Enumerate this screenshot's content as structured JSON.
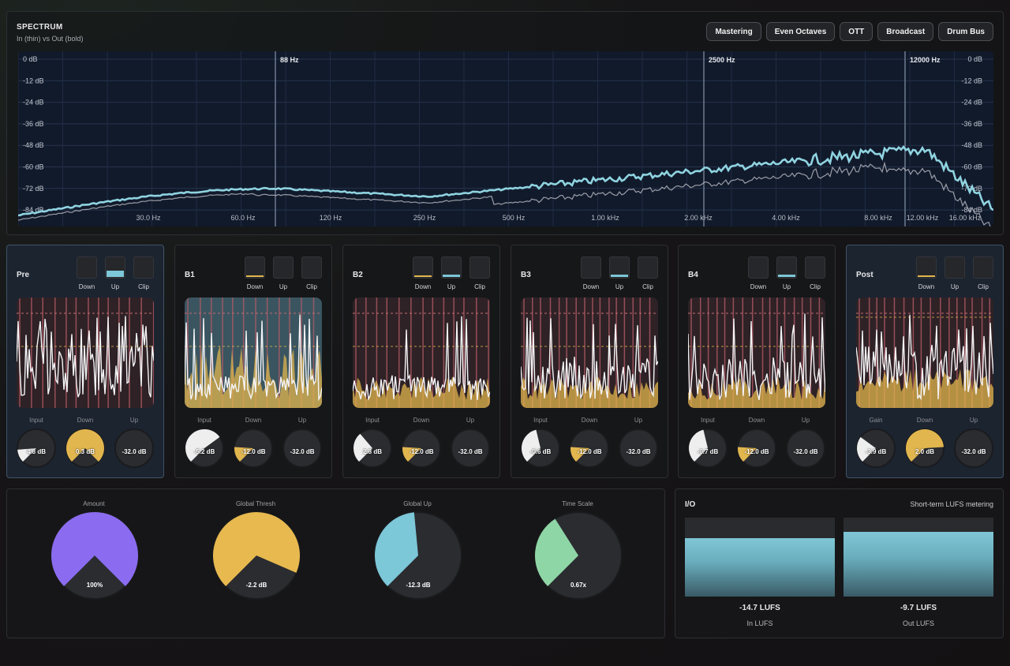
{
  "spectrum": {
    "title": "SPECTRUM",
    "subtitle": "In (thin) vs Out (bold)",
    "presets": [
      "Mastering",
      "Even Octaves",
      "OTT",
      "Broadcast",
      "Drum Bus"
    ],
    "db_left": [
      "0 dB",
      "-12 dB",
      "-24 dB",
      "-36 dB",
      "-48 dB",
      "-60 dB",
      "-72 dB",
      "-84 dB"
    ],
    "db_right": [
      "0 dB",
      "-12 dB",
      "-24 dB",
      "-36 dB",
      "-48 dB",
      "-60 dB",
      "-72 dB",
      "-84 dB"
    ],
    "freq_ticks": [
      "30.0 Hz",
      "60.0 Hz",
      "120 Hz",
      "250 Hz",
      "500 Hz",
      "1.00 kHz",
      "2.00 kHz",
      "4.00 kHz",
      "8.00 kHz",
      "12.00 kHz",
      "16.00 kHz"
    ],
    "split_labels": [
      "88 Hz",
      "2500 Hz",
      "12000 Hz"
    ],
    "colors": {
      "out": "#8fd3e0",
      "in": "#c9c9d1",
      "grid": "#2a3a55",
      "bg": "#111827"
    }
  },
  "bands": [
    {
      "name": "Pre",
      "toggles": {
        "down": "Down",
        "up": "Up",
        "clip": "Clip"
      },
      "active": "up",
      "knob_labels": [
        "Input",
        "Down",
        "Up"
      ],
      "values": [
        "4.8 dB",
        "0.3 dB",
        "-32.0 dB"
      ],
      "fills": [
        0.15,
        1.0,
        0.0
      ]
    },
    {
      "name": "B1",
      "toggles": {
        "down": "Down",
        "up": "Up",
        "clip": "Clip"
      },
      "active": "down",
      "knob_labels": [
        "Input",
        "Down",
        "Up"
      ],
      "values": [
        "-5.2 dB",
        "-12.0 dB",
        "-32.0 dB"
      ],
      "fills": [
        0.7,
        0.18,
        0.0
      ]
    },
    {
      "name": "B2",
      "toggles": {
        "down": "Down",
        "up": "Up",
        "clip": "Clip"
      },
      "active": "down-up",
      "knob_labels": [
        "Input",
        "Down",
        "Up"
      ],
      "values": [
        "2.8 dB",
        "-12.0 dB",
        "-32.0 dB"
      ],
      "fills": [
        0.35,
        0.18,
        0.0
      ]
    },
    {
      "name": "B3",
      "toggles": {
        "down": "Down",
        "up": "Up",
        "clip": "Clip"
      },
      "active": "up",
      "knob_labels": [
        "Input",
        "Down",
        "Up"
      ],
      "values": [
        "-0.6 dB",
        "-12.0 dB",
        "-32.0 dB"
      ],
      "fills": [
        0.45,
        0.18,
        0.0
      ]
    },
    {
      "name": "B4",
      "toggles": {
        "down": "Down",
        "up": "Up",
        "clip": "Clip"
      },
      "active": "up",
      "knob_labels": [
        "Input",
        "Down",
        "Up"
      ],
      "values": [
        "-0.7 dB",
        "-12.0 dB",
        "-32.0 dB"
      ],
      "fills": [
        0.45,
        0.18,
        0.0
      ]
    },
    {
      "name": "Post",
      "toggles": {
        "down": "Down",
        "up": "Up",
        "clip": "Clip"
      },
      "active": "down",
      "knob_labels": [
        "Gain",
        "Down",
        "Up"
      ],
      "values": [
        "-3.9 dB",
        "2.0 dB",
        "-32.0 dB"
      ],
      "fills": [
        0.3,
        0.82,
        0.0
      ]
    }
  ],
  "globals": [
    {
      "label": "Amount",
      "value": "100%",
      "fill": 1.0,
      "color": "#8b6cf0"
    },
    {
      "label": "Global Thresh",
      "value": "-2.2 dB",
      "fill": 0.92,
      "color": "#e8b94f"
    },
    {
      "label": "Global Up",
      "value": "-12.3 dB",
      "fill": 0.48,
      "color": "#7cc7d8"
    },
    {
      "label": "Time Scale",
      "value": "0.67x",
      "fill": 0.38,
      "color": "#8fd6a6"
    }
  ],
  "io": {
    "title": "I/O",
    "subtitle": "Short-term LUFS metering",
    "meters": [
      {
        "name": "In LUFS",
        "value": "-14.7 LUFS",
        "level": 0.74
      },
      {
        "name": "Out LUFS",
        "value": "-9.7 LUFS",
        "level": 0.82
      }
    ]
  },
  "colors": {
    "white": "#f0f0f2",
    "gold": "#e2b64e",
    "cyan": "#7cc7d8",
    "red": "#c46a73",
    "panel": "#161719"
  }
}
